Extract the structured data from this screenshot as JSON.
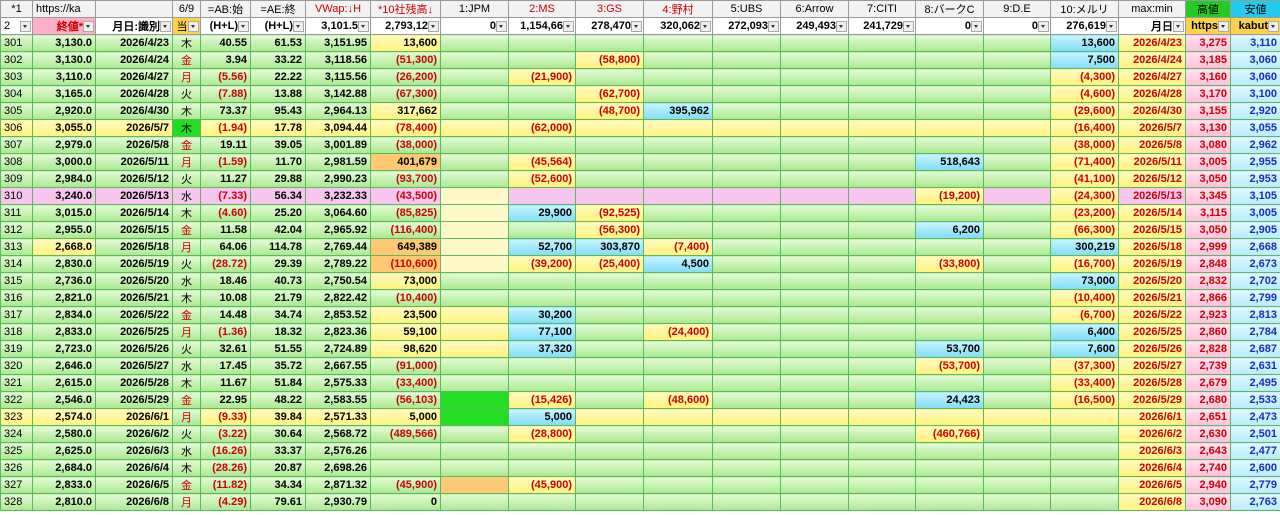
{
  "header": {
    "row1": [
      "*1",
      "https://ka",
      null,
      "6/9",
      "=AB:始",
      "=AE:終",
      "VWap:↓H",
      "*10社残高↓",
      "1:JPM",
      "2:MS",
      "3:GS",
      "4:野村",
      "5:UBS",
      "6:Arrow",
      "7:CITI",
      "8:バークC",
      "9:D.E",
      "10:メルリ",
      "max:min",
      "高値",
      "安値"
    ],
    "row2": [
      "2",
      "終値*",
      "月日:識別",
      "当",
      "(H+L)",
      "(H+L)",
      "3,101.5",
      "2,793,12",
      "0",
      "1,154,66",
      "278,470",
      "320,062",
      "272,093",
      "249,493",
      "241,729",
      "0",
      "0",
      "276,619",
      "月日",
      "https",
      "kabut"
    ]
  },
  "rows": [
    [
      "301",
      "3,130.0",
      "2026/4/23",
      "木",
      "40.55",
      "61.53",
      "3,151.95",
      "13,600",
      null,
      null,
      null,
      null,
      null,
      null,
      null,
      null,
      null,
      "13,600",
      "2026/4/23",
      "3,275",
      "3,110"
    ],
    [
      "302",
      "3,130.0",
      "2026/4/24",
      "金",
      "3.94",
      "33.22",
      "3,118.56",
      "(51,300)",
      null,
      null,
      "(58,800)",
      null,
      null,
      null,
      null,
      null,
      null,
      "7,500",
      "2026/4/24",
      "3,185",
      "3,060"
    ],
    [
      "303",
      "3,110.0",
      "2026/4/27",
      "月",
      "(5.56)",
      "22.22",
      "3,115.56",
      "(26,200)",
      null,
      "(21,900)",
      null,
      null,
      null,
      null,
      null,
      null,
      null,
      "(4,300)",
      "2026/4/27",
      "3,160",
      "3,060"
    ],
    [
      "304",
      "3,165.0",
      "2026/4/28",
      "火",
      "(7.88)",
      "13.88",
      "3,142.88",
      "(67,300)",
      null,
      null,
      "(62,700)",
      null,
      null,
      null,
      null,
      null,
      null,
      "(4,600)",
      "2026/4/28",
      "3,170",
      "3,100"
    ],
    [
      "305",
      "2,920.0",
      "2026/4/30",
      "木",
      "73.37",
      "95.43",
      "2,964.13",
      "317,662",
      null,
      null,
      "(48,700)",
      "395,962",
      null,
      null,
      null,
      null,
      null,
      "(29,600)",
      "2026/4/30",
      "3,155",
      "2,920"
    ],
    [
      "306",
      "3,055.0",
      "2026/5/7",
      "木",
      "(1.94)",
      "17.78",
      "3,094.44",
      "(78,400)",
      null,
      "(62,000)",
      null,
      null,
      null,
      null,
      null,
      null,
      null,
      "(16,400)",
      "2026/5/7",
      "3,130",
      "3,055"
    ],
    [
      "307",
      "2,979.0",
      "2026/5/8",
      "金",
      "19.11",
      "39.05",
      "3,001.89",
      "(38,000)",
      null,
      null,
      null,
      null,
      null,
      null,
      null,
      null,
      null,
      "(38,000)",
      "2026/5/8",
      "3,080",
      "2,962"
    ],
    [
      "308",
      "3,000.0",
      "2026/5/11",
      "月",
      "(1.59)",
      "11.70",
      "2,981.59",
      "401,679",
      null,
      "(45,564)",
      null,
      null,
      null,
      null,
      null,
      "518,643",
      null,
      "(71,400)",
      "2026/5/11",
      "3,005",
      "2,955"
    ],
    [
      "309",
      "2,984.0",
      "2026/5/12",
      "火",
      "11.27",
      "29.88",
      "2,990.23",
      "(93,700)",
      null,
      "(52,600)",
      null,
      null,
      null,
      null,
      null,
      null,
      null,
      "(41,100)",
      "2026/5/12",
      "3,050",
      "2,953"
    ],
    [
      "310",
      "3,240.0",
      "2026/5/13",
      "水",
      "(7.33)",
      "56.34",
      "3,232.33",
      "(43,500)",
      null,
      null,
      null,
      null,
      null,
      null,
      null,
      "(19,200)",
      null,
      "(24,300)",
      "2026/5/13",
      "3,345",
      "3,105"
    ],
    [
      "311",
      "3,015.0",
      "2026/5/14",
      "木",
      "(4.60)",
      "25.20",
      "3,064.60",
      "(85,825)",
      null,
      "29,900",
      "(92,525)",
      null,
      null,
      null,
      null,
      null,
      null,
      "(23,200)",
      "2026/5/14",
      "3,115",
      "3,005"
    ],
    [
      "312",
      "2,955.0",
      "2026/5/15",
      "金",
      "11.58",
      "42.04",
      "2,965.92",
      "(116,400)",
      null,
      null,
      "(56,300)",
      null,
      null,
      null,
      null,
      "6,200",
      null,
      "(66,300)",
      "2026/5/15",
      "3,050",
      "2,905"
    ],
    [
      "313",
      "2,668.0",
      "2026/5/18",
      "月",
      "64.06",
      "114.78",
      "2,769.44",
      "649,389",
      null,
      "52,700",
      "303,870",
      "(7,400)",
      null,
      null,
      null,
      null,
      null,
      "300,219",
      "2026/5/18",
      "2,999",
      "2,668"
    ],
    [
      "314",
      "2,830.0",
      "2026/5/19",
      "火",
      "(28.72)",
      "29.39",
      "2,789.22",
      "(110,600)",
      null,
      "(39,200)",
      "(25,400)",
      "4,500",
      null,
      null,
      null,
      "(33,800)",
      null,
      "(16,700)",
      "2026/5/19",
      "2,848",
      "2,673"
    ],
    [
      "315",
      "2,736.0",
      "2026/5/20",
      "水",
      "18.46",
      "40.73",
      "2,750.54",
      "73,000",
      null,
      null,
      null,
      null,
      null,
      null,
      null,
      null,
      null,
      "73,000",
      "2026/5/20",
      "2,832",
      "2,702"
    ],
    [
      "316",
      "2,821.0",
      "2026/5/21",
      "木",
      "10.08",
      "21.79",
      "2,822.42",
      "(10,400)",
      null,
      null,
      null,
      null,
      null,
      null,
      null,
      null,
      null,
      "(10,400)",
      "2026/5/21",
      "2,866",
      "2,799"
    ],
    [
      "317",
      "2,834.0",
      "2026/5/22",
      "金",
      "14.48",
      "34.74",
      "2,853.52",
      "23,500",
      null,
      "30,200",
      null,
      null,
      null,
      null,
      null,
      null,
      null,
      "(6,700)",
      "2026/5/22",
      "2,923",
      "2,813"
    ],
    [
      "318",
      "2,833.0",
      "2026/5/25",
      "月",
      "(1.36)",
      "18.32",
      "2,823.36",
      "59,100",
      null,
      "77,100",
      null,
      "(24,400)",
      null,
      null,
      null,
      null,
      null,
      "6,400",
      "2026/5/25",
      "2,860",
      "2,784"
    ],
    [
      "319",
      "2,723.0",
      "2026/5/26",
      "火",
      "32.61",
      "51.55",
      "2,724.89",
      "98,620",
      null,
      "37,320",
      null,
      null,
      null,
      null,
      null,
      "53,700",
      null,
      "7,600",
      "2026/5/26",
      "2,828",
      "2,687"
    ],
    [
      "320",
      "2,646.0",
      "2026/5/27",
      "水",
      "17.45",
      "35.72",
      "2,667.55",
      "(91,000)",
      null,
      null,
      null,
      null,
      null,
      null,
      null,
      "(53,700)",
      null,
      "(37,300)",
      "2026/5/27",
      "2,739",
      "2,631"
    ],
    [
      "321",
      "2,615.0",
      "2026/5/28",
      "木",
      "11.67",
      "51.84",
      "2,575.33",
      "(33,400)",
      null,
      null,
      null,
      null,
      null,
      null,
      null,
      null,
      null,
      "(33,400)",
      "2026/5/28",
      "2,679",
      "2,495"
    ],
    [
      "322",
      "2,546.0",
      "2026/5/29",
      "金",
      "22.95",
      "48.22",
      "2,583.55",
      "(56,103)",
      null,
      "(15,426)",
      null,
      "(48,600)",
      null,
      null,
      null,
      "24,423",
      null,
      "(16,500)",
      "2026/5/29",
      "2,680",
      "2,533"
    ],
    [
      "323",
      "2,574.0",
      "2026/6/1",
      "月",
      "(9.33)",
      "39.84",
      "2,571.33",
      "5,000",
      null,
      "5,000",
      null,
      null,
      null,
      null,
      null,
      null,
      null,
      null,
      "2026/6/1",
      "2,651",
      "2,473"
    ],
    [
      "324",
      "2,580.0",
      "2026/6/2",
      "火",
      "(3.22)",
      "30.64",
      "2,568.72",
      "(489,566)",
      null,
      "(28,800)",
      null,
      null,
      null,
      null,
      null,
      "(460,766)",
      null,
      null,
      "2026/6/2",
      "2,630",
      "2,501"
    ],
    [
      "325",
      "2,625.0",
      "2026/6/3",
      "水",
      "(16.26)",
      "33.37",
      "2,576.26",
      null,
      null,
      null,
      null,
      null,
      null,
      null,
      null,
      null,
      null,
      null,
      "2026/6/3",
      "2,643",
      "2,477"
    ],
    [
      "326",
      "2,684.0",
      "2026/6/4",
      "木",
      "(28.26)",
      "20.87",
      "2,698.26",
      null,
      null,
      null,
      null,
      null,
      null,
      null,
      null,
      null,
      null,
      null,
      "2026/6/4",
      "2,740",
      "2,600"
    ],
    [
      "327",
      "2,833.0",
      "2026/6/5",
      "金",
      "(11.82)",
      "34.34",
      "2,871.32",
      "(45,900)",
      null,
      "(45,900)",
      null,
      null,
      null,
      null,
      null,
      null,
      null,
      null,
      "2026/6/5",
      "2,940",
      "2,779"
    ],
    [
      "328",
      "2,810.0",
      "2026/6/8",
      "月",
      "(4.29)",
      "79.61",
      "2,930.79",
      "0",
      null,
      null,
      null,
      null,
      null,
      null,
      null,
      null,
      null,
      null,
      "2026/6/8",
      "3,090",
      "2,763"
    ]
  ]
}
